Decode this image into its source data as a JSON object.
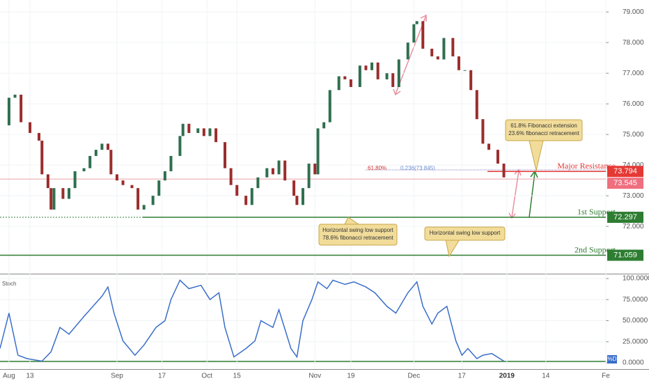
{
  "chart_data": [
    {
      "type": "candlestick",
      "x": [
        0,
        3,
        5,
        7,
        10,
        13,
        14,
        16,
        17,
        18,
        21,
        23,
        25,
        28,
        30,
        32,
        34,
        36,
        37,
        39,
        41,
        44,
        46,
        48,
        51,
        53,
        55,
        57,
        60,
        61,
        63,
        66,
        68,
        70,
        72,
        75,
        77,
        79,
        82,
        84,
        86,
        89,
        91,
        93,
        95,
        98,
        99,
        101,
        103,
        105,
        106,
        108,
        110,
        113,
        115,
        117,
        120,
        122,
        124,
        126,
        129,
        131,
        133,
        136,
        138,
        139,
        141,
        144,
        146,
        148,
        151,
        153,
        155,
        157,
        159,
        161,
        163,
        166,
        168
      ],
      "values": [
        75.3,
        76.2,
        76.3,
        75.4,
        75.05,
        74.8,
        73.7,
        73.25,
        72.55,
        73.25,
        72.9,
        73.25,
        73.8,
        73.9,
        74.3,
        74.5,
        74.7,
        74.5,
        73.7,
        73.5,
        73.35,
        73.25,
        72.55,
        72.7,
        73.0,
        73.5,
        73.8,
        74.3,
        74.95,
        75.35,
        75.05,
        75.2,
        74.95,
        75.2,
        74.75,
        73.9,
        73.35,
        73.0,
        72.7,
        73.25,
        73.6,
        73.9,
        73.7,
        74.15,
        73.5,
        73.0,
        72.7,
        73.25,
        74.05,
        73.7,
        75.2,
        75.4,
        76.45,
        76.9,
        76.8,
        76.55,
        77.25,
        77.1,
        77.35,
        76.8,
        77.0,
        76.55,
        77.45,
        78.0,
        78.6,
        78.7,
        77.8,
        77.55,
        77.45,
        78.15,
        77.55,
        77.1,
        77.1,
        76.45,
        75.5,
        74.7,
        74.5,
        74.05,
        73.6
      ],
      "up_color": "#2f6f4f",
      "down_color": "#9b2d2d",
      "xlim": [
        0,
        202
      ],
      "ylim": [
        70.48,
        79.39
      ],
      "yticks": [
        {
          "value": 79,
          "label": "79.000"
        },
        {
          "value": 78,
          "label": "78.000"
        },
        {
          "value": 77,
          "label": "77.000"
        },
        {
          "value": 76,
          "label": "76.000"
        },
        {
          "value": 75,
          "label": "75.000"
        },
        {
          "value": 74,
          "label": "74.000"
        },
        {
          "value": 73,
          "label": "73.000"
        },
        {
          "value": 72,
          "label": "72.000"
        }
      ],
      "levels": [
        {
          "name": "Major Resistance",
          "value": 73.794,
          "color": "#e53935"
        },
        {
          "name": "1st Support",
          "value": 72.297,
          "color": "#2e7d32"
        },
        {
          "name": "2nd Support",
          "value": 71.059,
          "color": "#2e7d32"
        }
      ],
      "last_price": 73.545,
      "fib_labels": [
        "61.80%",
        "0.236(73.845)"
      ],
      "annotations": [
        {
          "lines": [
            "61.8% Fibonacci extension",
            "23.6% fibonacci retracement"
          ]
        },
        {
          "lines": [
            "Horizontal swing low support",
            "78.6% fibonacci retracement"
          ]
        },
        {
          "lines": [
            "Horizontal swing low support"
          ]
        }
      ]
    },
    {
      "type": "line",
      "label": "Stoch",
      "series_label": "%D",
      "color": "#3a6ec9",
      "x": [
        0,
        3,
        6,
        9,
        14,
        17,
        20,
        23,
        28,
        31,
        34,
        36,
        38,
        41,
        45,
        48,
        52,
        55,
        57,
        60,
        63,
        67,
        70,
        73,
        75,
        78,
        82,
        85,
        87,
        91,
        93,
        97,
        99,
        101,
        104,
        106,
        109,
        111,
        115,
        118,
        122,
        125,
        129,
        132,
        136,
        139,
        141,
        144,
        146,
        149,
        152,
        154,
        156,
        159,
        161,
        164,
        168
      ],
      "values": [
        17,
        59,
        9,
        5,
        2,
        13,
        42,
        34,
        55,
        67,
        79,
        90,
        59,
        26,
        9,
        21,
        42,
        50,
        75,
        98,
        88,
        92,
        75,
        83,
        42,
        7,
        17,
        26,
        50,
        42,
        63,
        17,
        7,
        50,
        75,
        96,
        88,
        98,
        93,
        96,
        90,
        83,
        67,
        59,
        83,
        96,
        67,
        46,
        59,
        67,
        26,
        9,
        17,
        5,
        9,
        11,
        2
      ],
      "xlim": [
        0,
        202
      ],
      "ylim": [
        -7.4,
        104.1
      ],
      "yticks": [
        {
          "value": 100,
          "label": "100.0000"
        },
        {
          "value": 75,
          "label": "75.0000"
        },
        {
          "value": 50,
          "label": "50.0000"
        },
        {
          "value": 25,
          "label": "25.0000"
        },
        {
          "value": 0,
          "label": "0.0000"
        }
      ],
      "xticks": [
        {
          "value": 3,
          "label": "Aug"
        },
        {
          "value": 10,
          "label": "13"
        },
        {
          "value": 39,
          "label": "Sep"
        },
        {
          "value": 54,
          "label": "17"
        },
        {
          "value": 69,
          "label": "Oct"
        },
        {
          "value": 79,
          "label": "15"
        },
        {
          "value": 105,
          "label": "Nov"
        },
        {
          "value": 117,
          "label": "19"
        },
        {
          "value": 138,
          "label": "Dec"
        },
        {
          "value": 154,
          "label": "17"
        },
        {
          "value": 169,
          "label": "2019"
        },
        {
          "value": 182,
          "label": "14"
        },
        {
          "value": 202,
          "label": "Fe"
        }
      ]
    }
  ]
}
